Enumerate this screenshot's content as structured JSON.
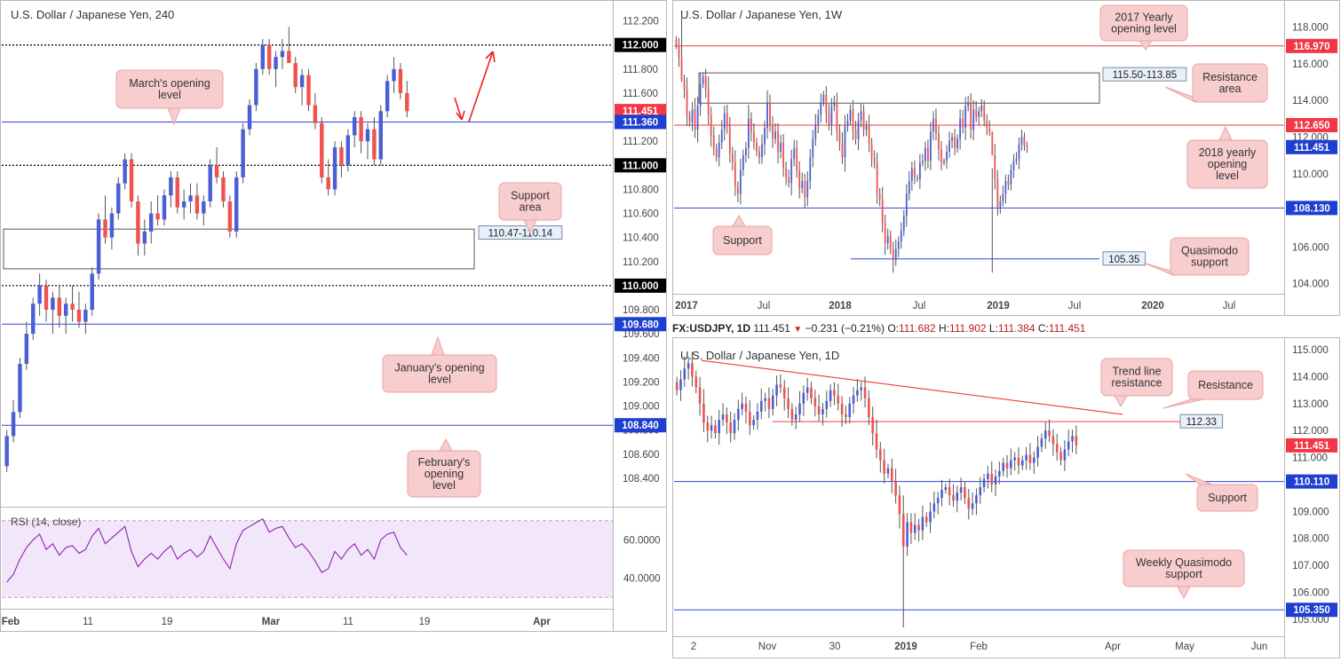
{
  "colors": {
    "bull": "#4a5fd6",
    "bear": "#ef5350",
    "level_blue": "#3046d8",
    "level_red": "#ef3b3b",
    "zone_border": "#555555",
    "callout_bg": "#f8cdcd",
    "callout_border": "#e9a3a3",
    "rsi_line": "#8e24aa",
    "rsi_band": "#f2e6fb",
    "price_tag_red": "#f23645",
    "price_tag_blue": "#1e3fd0",
    "price_tag_black": "#000000",
    "axis_text": "#444444",
    "grid": "#e6e6e6"
  },
  "header_1d": {
    "symbol": "FX:USDJPY, 1D",
    "last": "111.451",
    "arrow": "▼",
    "change": "−0.231 (−0.21%)",
    "o_label": "O:",
    "o": "111.682",
    "h_label": "H:",
    "h": "111.902",
    "l_label": "L:",
    "l": "111.384",
    "c_label": "C:",
    "c": "111.451"
  },
  "chart_data": [
    {
      "id": "h4",
      "type": "candlestick",
      "title": "U.S. Dollar / Japanese Yen, 240",
      "ylim": [
        108.2,
        112.3
      ],
      "y_ticks": [
        "108.400",
        "108.600",
        "108.800",
        "109.000",
        "109.200",
        "109.400",
        "109.600",
        "109.800",
        "110.000",
        "110.200",
        "110.400",
        "110.600",
        "110.800",
        "111.000",
        "111.200",
        "111.400",
        "111.600",
        "111.800",
        "112.000",
        "112.200"
      ],
      "x_ticks": [
        "Feb",
        "11",
        "19",
        "Mar",
        "11",
        "19",
        "Apr"
      ],
      "price_tags": [
        {
          "value": 112.0,
          "text": "112.000",
          "color": "#000000"
        },
        {
          "value": 111.451,
          "text": "111.451",
          "color": "#f23645"
        },
        {
          "value": 111.36,
          "text": "111.360",
          "color": "#1e3fd0"
        },
        {
          "value": 111.0,
          "text": "111.000",
          "color": "#000000"
        },
        {
          "value": 110.0,
          "text": "110.000",
          "color": "#000000"
        },
        {
          "value": 109.68,
          "text": "109.680",
          "color": "#1e3fd0"
        },
        {
          "value": 108.84,
          "text": "108.840",
          "color": "#1e3fd0"
        }
      ],
      "levels": [
        {
          "value": 112.0,
          "style": "dotted"
        },
        {
          "value": 111.36,
          "style": "blue"
        },
        {
          "value": 111.0,
          "style": "dotted"
        },
        {
          "value": 110.0,
          "style": "dotted"
        },
        {
          "value": 109.68,
          "style": "blue"
        },
        {
          "value": 108.84,
          "style": "blue"
        }
      ],
      "zone": {
        "top": 110.47,
        "bottom": 110.14,
        "label": "110.47-110.14"
      },
      "callouts": [
        {
          "text": "March's opening level",
          "lines": [
            "March's opening",
            "level"
          ]
        },
        {
          "text": "Support area",
          "lines": [
            "Support",
            "area"
          ]
        },
        {
          "text": "January's opening level",
          "lines": [
            "January's opening",
            "level"
          ]
        },
        {
          "text": "February's opening level",
          "lines": [
            "February's",
            "opening",
            "level"
          ]
        }
      ],
      "candles": [
        [
          108.5,
          108.8,
          108.45,
          108.75
        ],
        [
          108.75,
          109.05,
          108.7,
          108.95
        ],
        [
          108.95,
          109.4,
          108.9,
          109.35
        ],
        [
          109.35,
          109.7,
          109.3,
          109.6
        ],
        [
          109.6,
          109.9,
          109.55,
          109.85
        ],
        [
          109.85,
          110.1,
          109.75,
          110.0
        ],
        [
          110.0,
          110.05,
          109.7,
          109.8
        ],
        [
          109.8,
          109.95,
          109.6,
          109.9
        ],
        [
          109.9,
          110.0,
          109.65,
          109.75
        ],
        [
          109.75,
          109.9,
          109.6,
          109.85
        ],
        [
          109.85,
          110.0,
          109.7,
          109.8
        ],
        [
          109.8,
          109.95,
          109.65,
          109.7
        ],
        [
          109.7,
          109.85,
          109.6,
          109.8
        ],
        [
          109.8,
          110.15,
          109.75,
          110.1
        ],
        [
          110.1,
          110.6,
          110.05,
          110.55
        ],
        [
          110.55,
          110.75,
          110.35,
          110.4
        ],
        [
          110.4,
          110.65,
          110.3,
          110.6
        ],
        [
          110.6,
          110.9,
          110.55,
          110.85
        ],
        [
          110.85,
          111.1,
          110.8,
          111.05
        ],
        [
          111.05,
          111.1,
          110.65,
          110.7
        ],
        [
          110.7,
          110.75,
          110.25,
          110.35
        ],
        [
          110.35,
          110.55,
          110.25,
          110.45
        ],
        [
          110.45,
          110.7,
          110.35,
          110.6
        ],
        [
          110.6,
          110.75,
          110.5,
          110.55
        ],
        [
          110.55,
          110.8,
          110.5,
          110.75
        ],
        [
          110.75,
          110.95,
          110.65,
          110.9
        ],
        [
          110.9,
          110.95,
          110.6,
          110.65
        ],
        [
          110.65,
          110.8,
          110.55,
          110.7
        ],
        [
          110.7,
          110.85,
          110.6,
          110.75
        ],
        [
          110.75,
          110.85,
          110.55,
          110.6
        ],
        [
          110.6,
          110.75,
          110.5,
          110.7
        ],
        [
          110.7,
          111.05,
          110.65,
          111.0
        ],
        [
          111.0,
          111.15,
          110.85,
          110.9
        ],
        [
          110.9,
          110.95,
          110.65,
          110.7
        ],
        [
          110.7,
          110.75,
          110.4,
          110.45
        ],
        [
          110.45,
          110.95,
          110.4,
          110.9
        ],
        [
          110.9,
          111.35,
          110.85,
          111.3
        ],
        [
          111.3,
          111.55,
          111.25,
          111.5
        ],
        [
          111.5,
          111.85,
          111.45,
          111.8
        ],
        [
          111.8,
          112.05,
          111.75,
          112.0
        ],
        [
          112.0,
          112.05,
          111.75,
          111.8
        ],
        [
          111.8,
          111.95,
          111.65,
          111.9
        ],
        [
          111.9,
          112.05,
          111.8,
          111.95
        ],
        [
          111.95,
          112.15,
          111.85,
          111.85
        ],
        [
          111.85,
          111.9,
          111.6,
          111.65
        ],
        [
          111.65,
          111.8,
          111.5,
          111.75
        ],
        [
          111.75,
          111.8,
          111.45,
          111.5
        ],
        [
          111.5,
          111.6,
          111.3,
          111.35
        ],
        [
          111.35,
          111.4,
          110.85,
          110.9
        ],
        [
          110.9,
          111.05,
          110.75,
          110.8
        ],
        [
          110.8,
          111.2,
          110.75,
          111.15
        ],
        [
          111.15,
          111.2,
          110.9,
          111.0
        ],
        [
          111.0,
          111.3,
          110.95,
          111.25
        ],
        [
          111.25,
          111.45,
          111.15,
          111.4
        ],
        [
          111.4,
          111.45,
          111.1,
          111.2
        ],
        [
          111.2,
          111.35,
          111.05,
          111.3
        ],
        [
          111.3,
          111.4,
          111.0,
          111.05
        ],
        [
          111.05,
          111.5,
          111.0,
          111.45
        ],
        [
          111.45,
          111.75,
          111.4,
          111.7
        ],
        [
          111.7,
          111.9,
          111.6,
          111.8
        ],
        [
          111.8,
          111.85,
          111.55,
          111.6
        ],
        [
          111.6,
          111.7,
          111.4,
          111.45
        ]
      ],
      "rsi": {
        "label": "RSI (14, close)",
        "ylim": [
          25,
          75
        ],
        "band": [
          30,
          70
        ],
        "y_ticks": [
          "40.0000",
          "60.0000"
        ],
        "values": [
          38,
          42,
          50,
          56,
          60,
          63,
          55,
          58,
          52,
          56,
          57,
          53,
          55,
          62,
          66,
          58,
          61,
          64,
          67,
          54,
          46,
          50,
          53,
          50,
          54,
          57,
          50,
          53,
          55,
          51,
          54,
          62,
          56,
          50,
          45,
          58,
          65,
          67,
          69,
          71,
          64,
          66,
          67,
          61,
          56,
          58,
          54,
          49,
          43,
          45,
          54,
          50,
          55,
          58,
          52,
          55,
          50,
          60,
          63,
          64,
          56,
          52
        ]
      }
    },
    {
      "id": "w1",
      "type": "candlestick",
      "title": "U.S. Dollar / Japanese Yen, 1W",
      "ylim": [
        103.5,
        118.8
      ],
      "y_ticks": [
        "104.000",
        "106.000",
        "108.000",
        "110.000",
        "112.000",
        "114.000",
        "116.000",
        "118.000"
      ],
      "x_ticks": [
        "2017",
        "Jul",
        "2018",
        "Jul",
        "2019",
        "Jul",
        "2020",
        "Jul"
      ],
      "price_tags": [
        {
          "value": 116.97,
          "text": "116.970",
          "color": "#f23645"
        },
        {
          "value": 112.65,
          "text": "112.650",
          "color": "#f23645"
        },
        {
          "value": 111.451,
          "text": "111.451",
          "color": "#1e3fd0"
        },
        {
          "value": 108.13,
          "text": "108.130",
          "color": "#1e3fd0"
        }
      ],
      "levels": [
        {
          "value": 116.97,
          "style": "red"
        },
        {
          "value": 112.65,
          "style": "red"
        },
        {
          "value": 108.13,
          "style": "blue"
        },
        {
          "value": 105.35,
          "style": "blue-short"
        }
      ],
      "zone": {
        "top": 115.5,
        "bottom": 113.85,
        "label": "115.50-113.85"
      },
      "quasimodo_label": "105.35",
      "callouts": [
        {
          "text": "2017 Yearly opening level",
          "lines": [
            "2017 Yearly",
            "opening level"
          ]
        },
        {
          "text": "Resistance area",
          "lines": [
            "Resistance",
            "area"
          ]
        },
        {
          "text": "2018 yearly opening level",
          "lines": [
            "2018 yearly",
            "opening",
            "level"
          ]
        },
        {
          "text": "Support",
          "lines": [
            "Support"
          ]
        },
        {
          "text": "Quasimodo support",
          "lines": [
            "Quasimodo",
            "support"
          ]
        }
      ],
      "closes": [
        117.0,
        116.3,
        115.1,
        114.6,
        113.2,
        112.8,
        113.5,
        112.4,
        113.7,
        114.9,
        115.3,
        114.6,
        113.2,
        112.1,
        111.4,
        110.9,
        111.7,
        112.4,
        113.3,
        112.6,
        111.1,
        110.6,
        109.3,
        108.9,
        110.2,
        111.0,
        111.4,
        113.0,
        112.3,
        111.7,
        111.2,
        110.9,
        111.6,
        112.5,
        113.9,
        112.7,
        111.9,
        112.3,
        111.2,
        111.7,
        110.3,
        109.8,
        109.5,
        110.8,
        111.4,
        110.2,
        109.2,
        109.6,
        108.7,
        109.6,
        110.9,
        111.9,
        112.7,
        113.2,
        113.9,
        114.3,
        113.3,
        112.7,
        113.7,
        113.9,
        112.3,
        111.7,
        110.9,
        112.6,
        112.9,
        113.5,
        112.4,
        111.9,
        112.9,
        113.4,
        112.4,
        112.6,
        111.6,
        110.9,
        110.6,
        108.9,
        108.6,
        107.3,
        106.2,
        106.6,
        105.9,
        105.3,
        105.9,
        106.3,
        106.9,
        107.7,
        108.9,
        109.6,
        110.3,
        109.8,
        109.7,
        110.6,
        110.7,
        111.4,
        110.7,
        112.3,
        113.0,
        112.2,
        111.3,
        110.6,
        110.7,
        111.2,
        111.8,
        112.0,
        111.4,
        111.9,
        113.0,
        112.5,
        113.7,
        113.9,
        112.4,
        113.5,
        113.1,
        113.4,
        113.7,
        112.9,
        112.5,
        112.3,
        111.0,
        109.7,
        108.2,
        108.5,
        108.9,
        109.6,
        109.4,
        110.2,
        110.7,
        110.8,
        111.6,
        112.0,
        111.5,
        111.45
      ]
    },
    {
      "id": "d1",
      "type": "candlestick",
      "title": "U.S. Dollar / Japanese Yen, 1D",
      "ylim": [
        104.6,
        115.2
      ],
      "y_ticks": [
        "105.000",
        "106.000",
        "107.000",
        "108.000",
        "109.000",
        "110.000",
        "111.000",
        "112.000",
        "113.000",
        "114.000",
        "115.000"
      ],
      "x_ticks": [
        "2",
        "Nov",
        "30",
        "2019",
        "Feb",
        "Apr",
        "May",
        "Jun"
      ],
      "price_tags": [
        {
          "value": 111.451,
          "text": "111.451",
          "color": "#f23645"
        },
        {
          "value": 110.11,
          "text": "110.110",
          "color": "#1e3fd0"
        },
        {
          "value": 105.35,
          "text": "105.350",
          "color": "#1e3fd0"
        }
      ],
      "levels": [
        {
          "value": 112.33,
          "style": "red-short"
        },
        {
          "value": 110.11,
          "style": "blue"
        },
        {
          "value": 105.35,
          "style": "blue"
        }
      ],
      "trendline": {
        "from": 114.6,
        "to": 112.6
      },
      "resistance_label": "112.33",
      "callouts": [
        {
          "text": "Trend line resistance",
          "lines": [
            "Trend line",
            "resistance"
          ]
        },
        {
          "text": "Resistance",
          "lines": [
            "Resistance"
          ]
        },
        {
          "text": "Support",
          "lines": [
            "Support"
          ]
        },
        {
          "text": "Weekly Quasimodo support",
          "lines": [
            "Weekly Quasimodo",
            "support"
          ]
        }
      ],
      "closes": [
        113.5,
        113.9,
        114.3,
        114.5,
        114.0,
        113.6,
        113.0,
        112.3,
        112.0,
        112.2,
        111.9,
        112.4,
        112.6,
        112.3,
        111.9,
        112.4,
        112.8,
        113.0,
        112.7,
        112.2,
        112.4,
        112.7,
        113.1,
        113.2,
        112.8,
        113.3,
        113.7,
        113.6,
        113.2,
        112.8,
        112.4,
        112.6,
        113.0,
        113.4,
        113.6,
        113.2,
        112.9,
        112.6,
        112.8,
        113.1,
        113.5,
        113.3,
        113.0,
        112.6,
        112.5,
        113.0,
        113.3,
        113.5,
        113.6,
        113.2,
        112.5,
        111.9,
        111.3,
        110.9,
        110.4,
        110.6,
        110.1,
        109.6,
        108.9,
        107.7,
        108.6,
        108.2,
        108.5,
        108.3,
        108.8,
        108.6,
        109.0,
        109.3,
        109.5,
        109.8,
        109.9,
        109.6,
        109.4,
        109.7,
        109.9,
        109.5,
        109.1,
        109.3,
        109.6,
        109.9,
        110.2,
        110.4,
        110.0,
        110.3,
        110.5,
        110.8,
        110.6,
        110.9,
        111.0,
        110.7,
        110.9,
        111.1,
        110.8,
        111.0,
        111.4,
        111.7,
        112.0,
        111.8,
        111.5,
        111.2,
        110.9,
        111.3,
        111.6,
        111.8,
        111.45
      ]
    }
  ]
}
